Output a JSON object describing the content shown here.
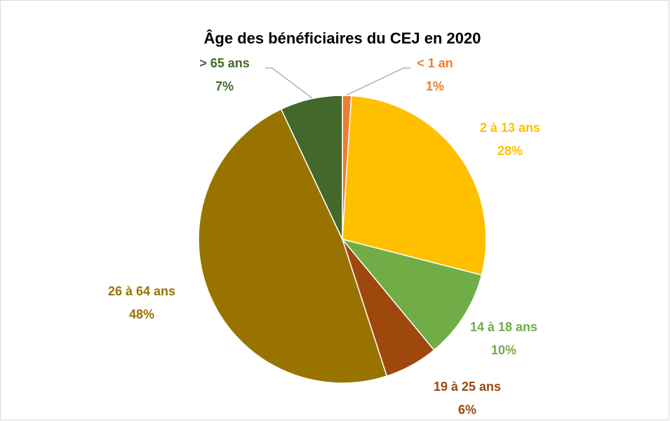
{
  "chart_data": {
    "type": "pie",
    "title": "Âge des bénéficiaires du CEJ en 2020",
    "categories": [
      "< 1 an",
      "2 à 13 ans",
      "14 à 18 ans",
      "19 à 25 ans",
      "26 à 64 ans",
      "> 65 ans"
    ],
    "values": [
      1,
      28,
      10,
      6,
      48,
      7
    ],
    "value_labels": [
      "1%",
      "28%",
      "10%",
      "6%",
      "48%",
      "7%"
    ],
    "colors": [
      "#ed7d31",
      "#ffc000",
      "#70ad47",
      "#9e480e",
      "#997300",
      "#43682b"
    ]
  }
}
